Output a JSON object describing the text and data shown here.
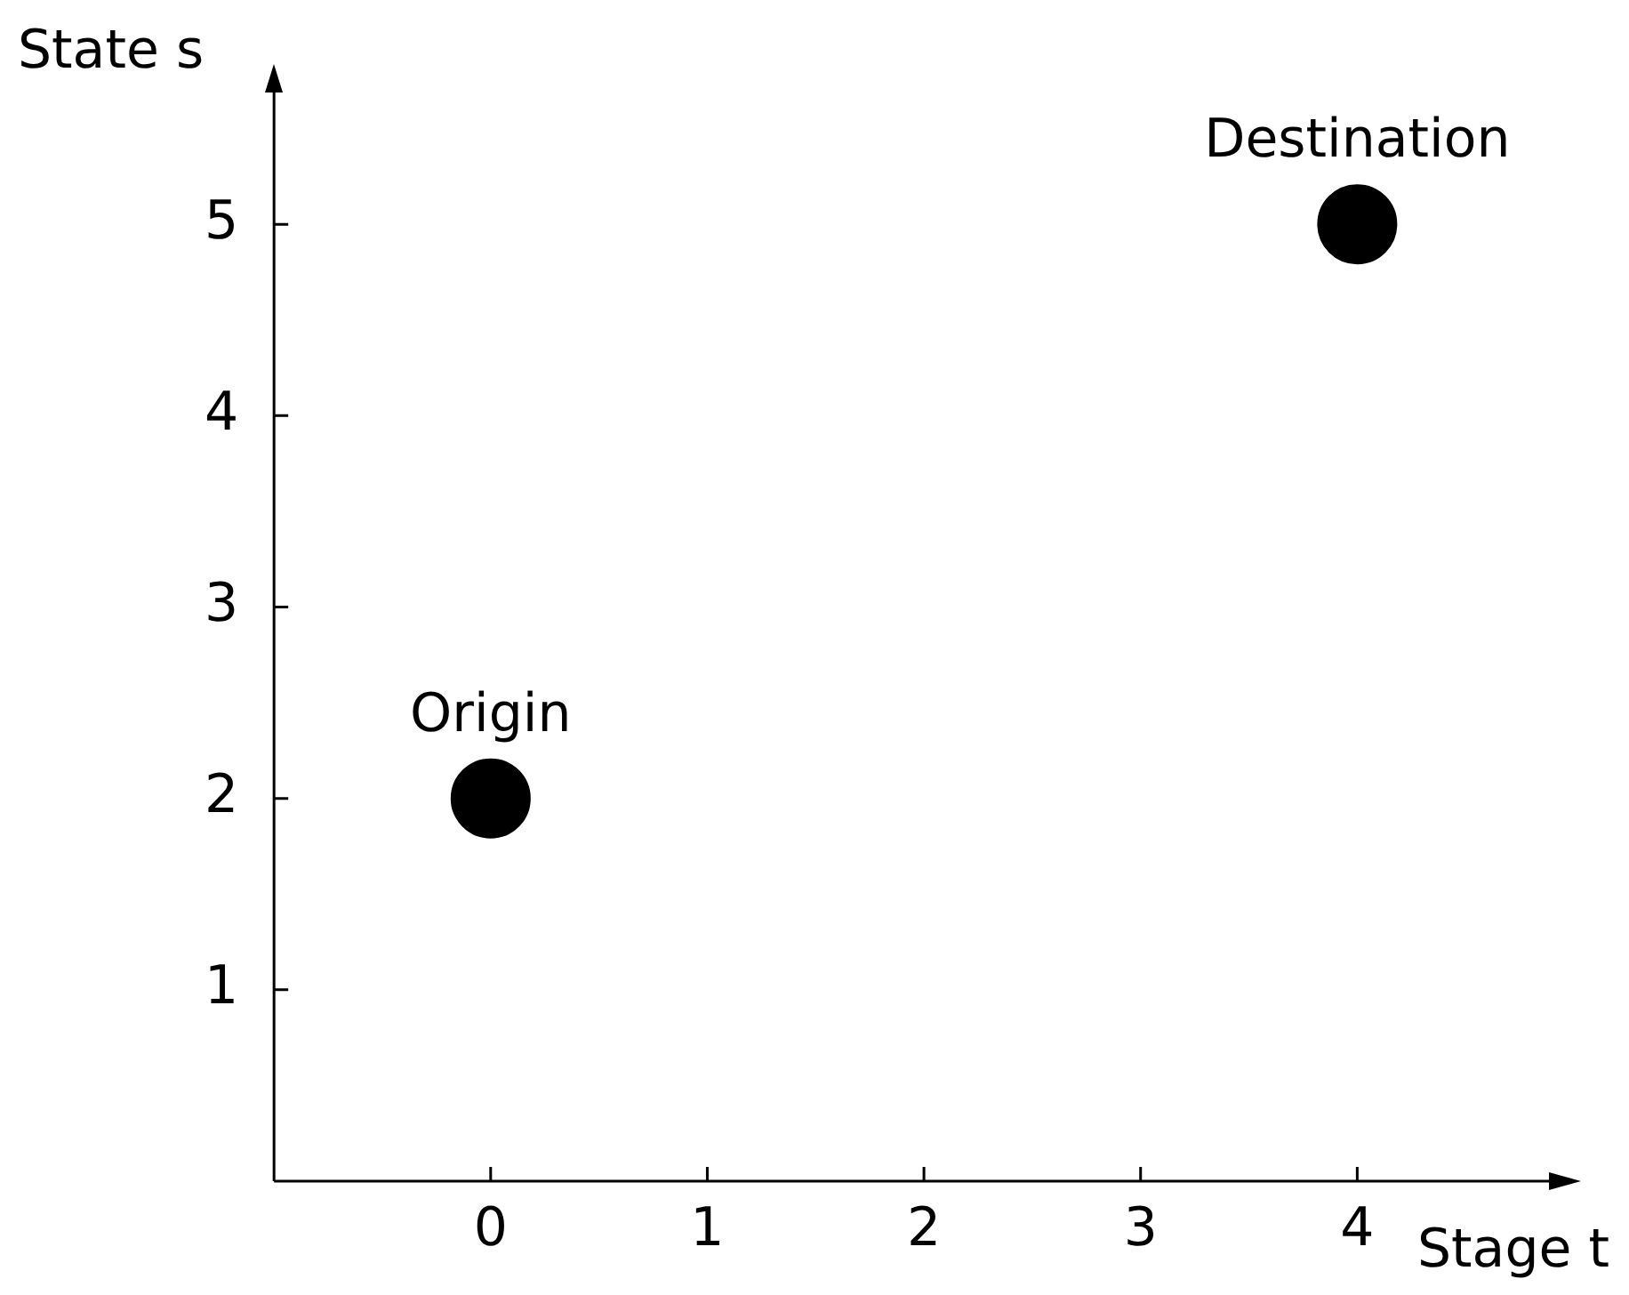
{
  "chart_data": {
    "type": "scatter",
    "xlabel": "Stage t",
    "ylabel": "State s",
    "x": [
      0,
      4
    ],
    "values": [
      2,
      5
    ],
    "color": "#000000",
    "marker": "circle",
    "xlim": [
      -1,
      5
    ],
    "ylim": [
      0,
      5.8
    ],
    "xticks": [
      0,
      1,
      2,
      3,
      4
    ],
    "yticks": [
      1,
      2,
      3,
      4,
      5
    ],
    "grid": false,
    "legend": false,
    "annotations": [
      {
        "text": "Origin",
        "x": 0,
        "y": 2
      },
      {
        "text": "Destination",
        "x": 4,
        "y": 5
      }
    ]
  }
}
